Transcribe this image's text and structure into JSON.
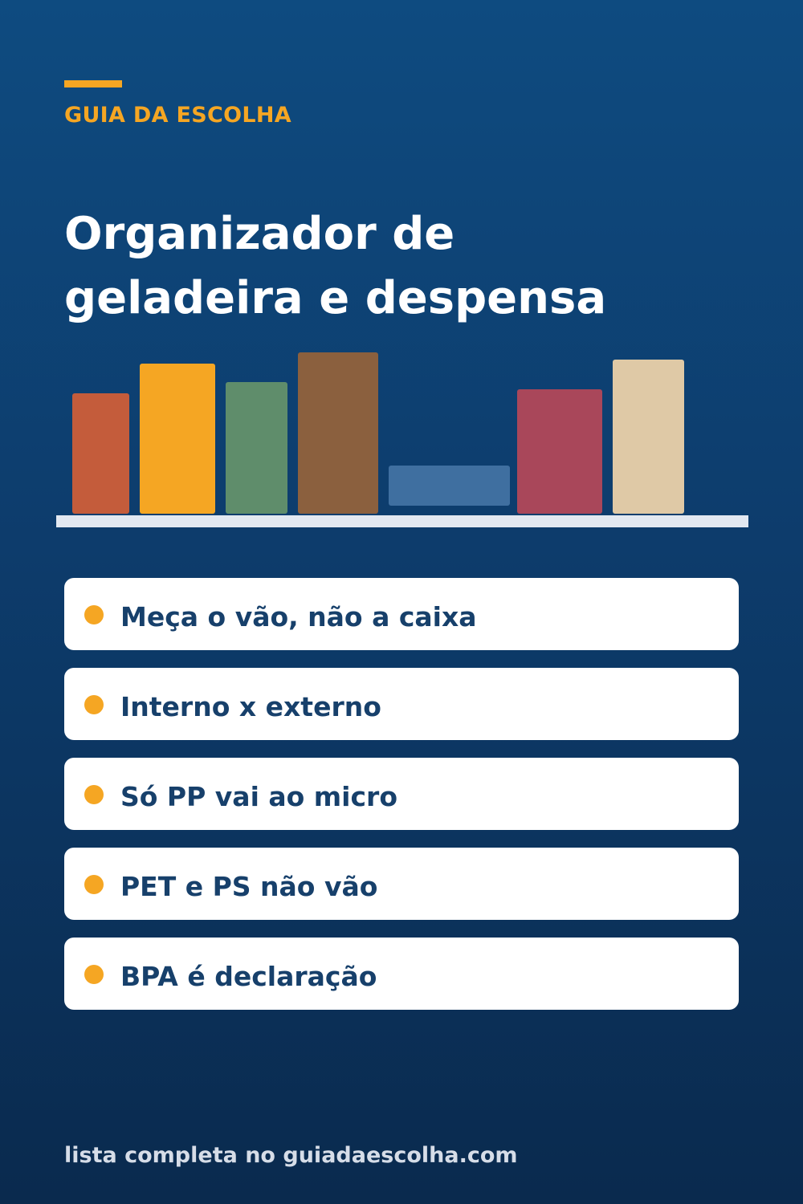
{
  "brand": {
    "label": "GUIA DA ESCOLHA",
    "accent_color": "#f5a623"
  },
  "title": {
    "line1": "Organizador de",
    "line2": "geladeira e despensa"
  },
  "illustration": {
    "containers": [
      {
        "name": "container-red",
        "color": "#c45c3b"
      },
      {
        "name": "container-yellow",
        "color": "#f5a623"
      },
      {
        "name": "container-green",
        "color": "#5f8d6b"
      },
      {
        "name": "container-brown",
        "color": "#8b603e"
      },
      {
        "name": "container-blue-low",
        "color": "#3f6fa0"
      },
      {
        "name": "container-crimson",
        "color": "#a9475a"
      },
      {
        "name": "container-beige",
        "color": "#dfc9a6"
      }
    ],
    "shelf_color": "#e2e8f1"
  },
  "tips": [
    {
      "text": "Meça o vão, não a caixa"
    },
    {
      "text": "Interno x externo"
    },
    {
      "text": "Só PP vai ao micro"
    },
    {
      "text": "PET e PS não vão"
    },
    {
      "text": "BPA é declaração"
    }
  ],
  "footer": {
    "text": "lista completa no guiadaescolha.com"
  }
}
